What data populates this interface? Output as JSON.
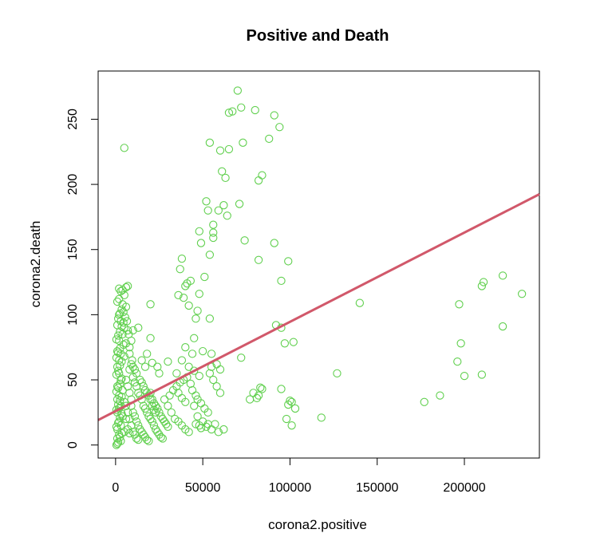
{
  "chart_data": {
    "type": "scatter",
    "title": "Positive and Death",
    "xlabel": "corona2.positive",
    "ylabel": "corona2.death",
    "xlim": [
      -10000,
      243000
    ],
    "ylim": [
      -10,
      287
    ],
    "x_ticks": [
      0,
      50000,
      100000,
      150000,
      200000
    ],
    "x_tick_labels": [
      "0",
      "50000",
      "100000",
      "150000",
      "200000"
    ],
    "y_ticks": [
      0,
      50,
      100,
      150,
      200,
      250
    ],
    "y_tick_labels": [
      "0",
      "50",
      "100",
      "150",
      "200",
      "250"
    ],
    "grid": false,
    "point_color": "#61d04f",
    "line_color": "#d1586a",
    "regression_line": {
      "intercept": 26,
      "slope": 0.000685
    },
    "series": [
      {
        "marker": "open-circle",
        "points": [
          [
            5000,
            228
          ],
          [
            70000,
            272
          ],
          [
            72000,
            259
          ],
          [
            67000,
            256
          ],
          [
            65000,
            255
          ],
          [
            80000,
            257
          ],
          [
            91000,
            253
          ],
          [
            94000,
            244
          ],
          [
            54000,
            232
          ],
          [
            73000,
            232
          ],
          [
            60000,
            226
          ],
          [
            65000,
            227
          ],
          [
            88000,
            235
          ],
          [
            61000,
            210
          ],
          [
            63000,
            205
          ],
          [
            84000,
            207
          ],
          [
            82000,
            203
          ],
          [
            52000,
            187
          ],
          [
            53000,
            180
          ],
          [
            62000,
            184
          ],
          [
            71000,
            185
          ],
          [
            59000,
            180
          ],
          [
            64000,
            176
          ],
          [
            56000,
            169
          ],
          [
            48000,
            164
          ],
          [
            56000,
            163
          ],
          [
            56000,
            159
          ],
          [
            49000,
            155
          ],
          [
            74000,
            157
          ],
          [
            91000,
            155
          ],
          [
            54000,
            146
          ],
          [
            82000,
            142
          ],
          [
            38000,
            143
          ],
          [
            37000,
            135
          ],
          [
            99000,
            141
          ],
          [
            51000,
            129
          ],
          [
            43000,
            126
          ],
          [
            41000,
            124
          ],
          [
            40000,
            122
          ],
          [
            95000,
            126
          ],
          [
            2000,
            120
          ],
          [
            4000,
            119
          ],
          [
            6000,
            121
          ],
          [
            7000,
            122
          ],
          [
            3000,
            118
          ],
          [
            5000,
            115
          ],
          [
            2000,
            112
          ],
          [
            1000,
            110
          ],
          [
            4000,
            108
          ],
          [
            6000,
            106
          ],
          [
            20000,
            108
          ],
          [
            39000,
            113
          ],
          [
            36000,
            115
          ],
          [
            48000,
            116
          ],
          [
            42000,
            107
          ],
          [
            47000,
            103
          ],
          [
            46000,
            97
          ],
          [
            54000,
            97
          ],
          [
            140000,
            109
          ],
          [
            233000,
            116
          ],
          [
            222000,
            130
          ],
          [
            211000,
            125
          ],
          [
            210000,
            122
          ],
          [
            197000,
            108
          ],
          [
            2000,
            100
          ],
          [
            3000,
            95
          ],
          [
            1000,
            92
          ],
          [
            5000,
            90
          ],
          [
            7000,
            88
          ],
          [
            4000,
            85
          ],
          [
            2000,
            80
          ],
          [
            6000,
            78
          ],
          [
            8000,
            75
          ],
          [
            1000,
            72
          ],
          [
            3000,
            70
          ],
          [
            5000,
            68
          ],
          [
            2000,
            65
          ],
          [
            10000,
            88
          ],
          [
            20000,
            82
          ],
          [
            13000,
            90
          ],
          [
            92000,
            92
          ],
          [
            95000,
            90
          ],
          [
            97000,
            78
          ],
          [
            102000,
            79
          ],
          [
            45000,
            82
          ],
          [
            40000,
            75
          ],
          [
            50000,
            72
          ],
          [
            44000,
            70
          ],
          [
            55000,
            70
          ],
          [
            18000,
            70
          ],
          [
            30000,
            64
          ],
          [
            24000,
            60
          ],
          [
            21000,
            63
          ],
          [
            38000,
            65
          ],
          [
            42000,
            60
          ],
          [
            45000,
            57
          ],
          [
            35000,
            55
          ],
          [
            55000,
            60
          ],
          [
            58000,
            62
          ],
          [
            60000,
            58
          ],
          [
            72000,
            67
          ],
          [
            48000,
            53
          ],
          [
            15000,
            65
          ],
          [
            17000,
            60
          ],
          [
            25000,
            55
          ],
          [
            198000,
            78
          ],
          [
            196000,
            64
          ],
          [
            200000,
            53
          ],
          [
            210000,
            54
          ],
          [
            127000,
            55
          ],
          [
            222000,
            91
          ],
          [
            1000,
            60
          ],
          [
            2000,
            55
          ],
          [
            3000,
            50
          ],
          [
            1000,
            45
          ],
          [
            4000,
            42
          ],
          [
            2000,
            38
          ],
          [
            1000,
            35
          ],
          [
            5000,
            33
          ],
          [
            3000,
            30
          ],
          [
            2000,
            28
          ],
          [
            1000,
            25
          ],
          [
            4000,
            22
          ],
          [
            6000,
            20
          ],
          [
            2000,
            18
          ],
          [
            3000,
            15
          ],
          [
            1000,
            12
          ],
          [
            5000,
            10
          ],
          [
            2000,
            8
          ],
          [
            1000,
            5
          ],
          [
            3000,
            3
          ],
          [
            1000,
            1
          ],
          [
            500,
            0
          ],
          [
            1500,
            2
          ],
          [
            2500,
            6
          ],
          [
            3500,
            9
          ],
          [
            500,
            14
          ],
          [
            1500,
            17
          ],
          [
            2500,
            21
          ],
          [
            3500,
            24
          ],
          [
            500,
            27
          ],
          [
            1500,
            31
          ],
          [
            2500,
            34
          ],
          [
            3500,
            37
          ],
          [
            500,
            41
          ],
          [
            1500,
            44
          ],
          [
            2500,
            47
          ],
          [
            3500,
            51
          ],
          [
            500,
            54
          ],
          [
            1500,
            57
          ],
          [
            2500,
            61
          ],
          [
            3500,
            64
          ],
          [
            500,
            67
          ],
          [
            1500,
            71
          ],
          [
            2500,
            74
          ],
          [
            4500,
            77
          ],
          [
            500,
            81
          ],
          [
            1500,
            84
          ],
          [
            2500,
            87
          ],
          [
            3500,
            91
          ],
          [
            4500,
            94
          ],
          [
            1500,
            97
          ],
          [
            2500,
            101
          ],
          [
            3500,
            104
          ],
          [
            4500,
            102
          ],
          [
            5500,
            98
          ],
          [
            6500,
            95
          ],
          [
            7500,
            85
          ],
          [
            9000,
            80
          ],
          [
            8000,
            70
          ],
          [
            9500,
            65
          ],
          [
            10000,
            52
          ],
          [
            11000,
            48
          ],
          [
            12000,
            45
          ],
          [
            13000,
            40
          ],
          [
            14000,
            38
          ],
          [
            15000,
            35
          ],
          [
            16000,
            30
          ],
          [
            17000,
            28
          ],
          [
            18000,
            25
          ],
          [
            19000,
            22
          ],
          [
            20000,
            20
          ],
          [
            21000,
            18
          ],
          [
            22000,
            15
          ],
          [
            23000,
            12
          ],
          [
            24000,
            10
          ],
          [
            25000,
            8
          ],
          [
            26000,
            6
          ],
          [
            27000,
            5
          ],
          [
            9000,
            30
          ],
          [
            10000,
            25
          ],
          [
            11000,
            22
          ],
          [
            12000,
            18
          ],
          [
            13000,
            15
          ],
          [
            14000,
            12
          ],
          [
            15000,
            10
          ],
          [
            16000,
            8
          ],
          [
            17000,
            6
          ],
          [
            18000,
            4
          ],
          [
            19000,
            3
          ],
          [
            8000,
            40
          ],
          [
            9000,
            35
          ],
          [
            7000,
            45
          ],
          [
            6000,
            50
          ],
          [
            6000,
            30
          ],
          [
            7000,
            25
          ],
          [
            8000,
            20
          ],
          [
            9000,
            15
          ],
          [
            10000,
            10
          ],
          [
            11000,
            8
          ],
          [
            12000,
            5
          ],
          [
            13000,
            4
          ],
          [
            7000,
            12
          ],
          [
            8000,
            9
          ],
          [
            30000,
            30
          ],
          [
            32000,
            25
          ],
          [
            34000,
            20
          ],
          [
            36000,
            18
          ],
          [
            38000,
            15
          ],
          [
            40000,
            12
          ],
          [
            42000,
            10
          ],
          [
            28000,
            35
          ],
          [
            31000,
            38
          ],
          [
            33000,
            42
          ],
          [
            35000,
            45
          ],
          [
            37000,
            48
          ],
          [
            39000,
            50
          ],
          [
            41000,
            52
          ],
          [
            43000,
            47
          ],
          [
            44000,
            42
          ],
          [
            46000,
            38
          ],
          [
            47000,
            35
          ],
          [
            49000,
            32
          ],
          [
            51000,
            28
          ],
          [
            53000,
            25
          ],
          [
            36000,
            40
          ],
          [
            38000,
            36
          ],
          [
            40000,
            33
          ],
          [
            45000,
            30
          ],
          [
            47000,
            22
          ],
          [
            50000,
            18
          ],
          [
            52000,
            14
          ],
          [
            55000,
            12
          ],
          [
            57000,
            16
          ],
          [
            59000,
            10
          ],
          [
            62000,
            12
          ],
          [
            48000,
            15
          ],
          [
            46000,
            16
          ],
          [
            49000,
            13
          ],
          [
            53000,
            16
          ],
          [
            54000,
            55
          ],
          [
            56000,
            50
          ],
          [
            58000,
            45
          ],
          [
            60000,
            40
          ],
          [
            77000,
            35
          ],
          [
            79000,
            40
          ],
          [
            82000,
            38
          ],
          [
            84000,
            43
          ],
          [
            83000,
            44
          ],
          [
            81000,
            36
          ],
          [
            95000,
            43
          ],
          [
            100000,
            34
          ],
          [
            99000,
            31
          ],
          [
            101000,
            33
          ],
          [
            103000,
            28
          ],
          [
            98000,
            20
          ],
          [
            101000,
            15
          ],
          [
            118000,
            21
          ],
          [
            177000,
            33
          ],
          [
            186000,
            38
          ],
          [
            20000,
            40
          ],
          [
            21000,
            35
          ],
          [
            22000,
            32
          ],
          [
            23000,
            30
          ],
          [
            24000,
            28
          ],
          [
            25000,
            25
          ],
          [
            26000,
            22
          ],
          [
            27000,
            20
          ],
          [
            28000,
            18
          ],
          [
            29000,
            16
          ],
          [
            30000,
            14
          ],
          [
            16000,
            45
          ],
          [
            17000,
            42
          ],
          [
            18000,
            40
          ],
          [
            19000,
            38
          ],
          [
            20000,
            35
          ],
          [
            21000,
            30
          ],
          [
            22000,
            27
          ],
          [
            23000,
            25
          ],
          [
            14000,
            50
          ],
          [
            15000,
            48
          ],
          [
            12000,
            55
          ],
          [
            11000,
            58
          ],
          [
            10000,
            60
          ],
          [
            9000,
            62
          ],
          [
            8000,
            58
          ]
        ]
      }
    ]
  }
}
